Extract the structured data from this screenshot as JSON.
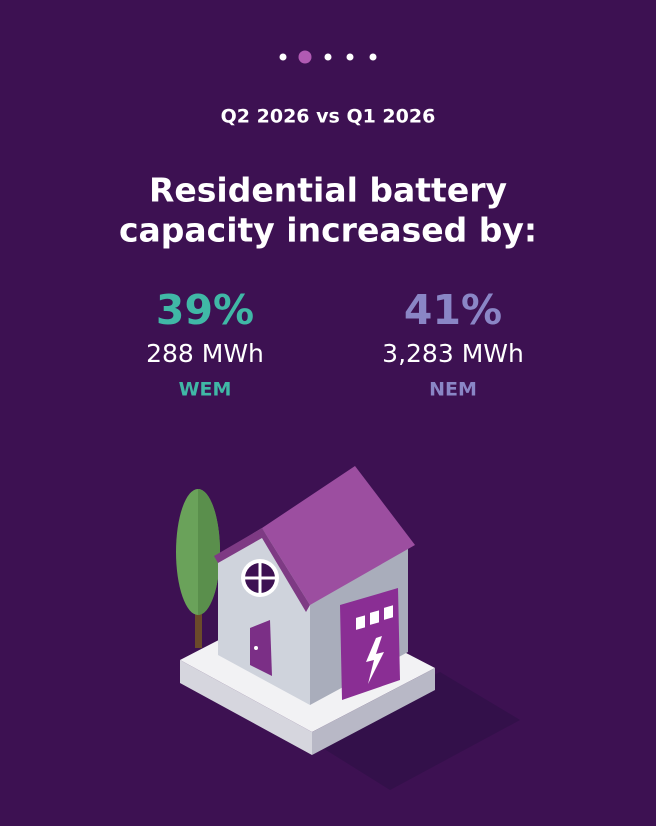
{
  "subtitle": "Q2 2026 vs Q1 2026",
  "title": [
    "Residential battery",
    "capacity increased by:"
  ],
  "stats": [
    {
      "percent": "39%",
      "amount": "288 MWh",
      "region": "WEM"
    },
    {
      "percent": "41%",
      "amount": "3,283 MWh",
      "region": "NEM"
    }
  ]
}
